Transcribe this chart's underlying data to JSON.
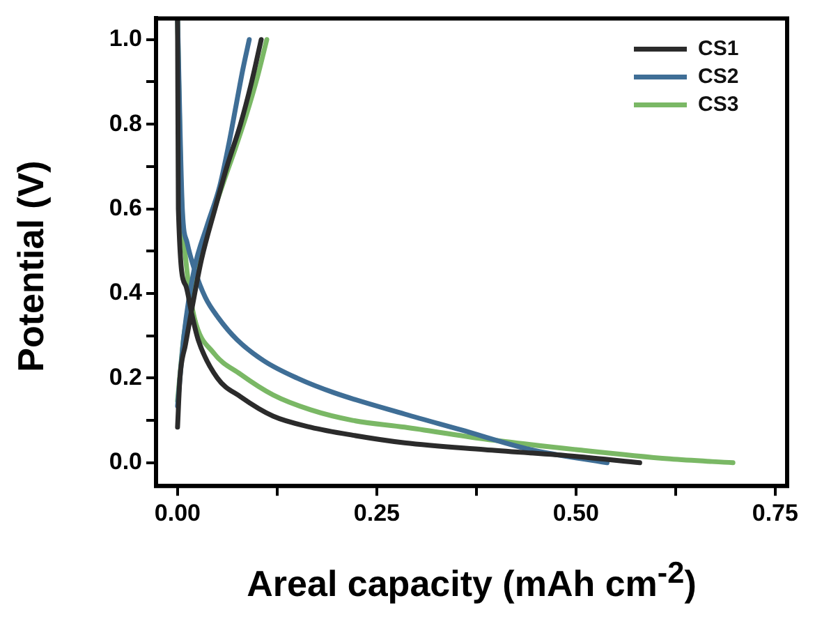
{
  "chart_data": {
    "type": "line",
    "xlabel": "Areal capacity (mAh cm$^{-2}$)",
    "ylabel": "Potential (V)",
    "xlim": [
      -0.027,
      0.765
    ],
    "ylim": [
      -0.055,
      1.05
    ],
    "xticks": [
      {
        "value": 0,
        "label": "0.00"
      },
      {
        "value": 0.125,
        "label": null
      },
      0.25,
      {
        "value": 0.375,
        "label": null
      },
      {
        "value": 0.5,
        "label": "0.50"
      },
      {
        "value": 0.625,
        "label": null
      },
      0.75
    ],
    "yticks": [
      {
        "value": 0,
        "label": "0.0"
      },
      {
        "value": 0.1,
        "label": null
      },
      0.2,
      {
        "value": 0.3,
        "label": null
      },
      0.4,
      {
        "value": 0.5,
        "label": null
      },
      0.6,
      {
        "value": 0.7,
        "label": null
      },
      0.8,
      {
        "value": 0.9,
        "label": null
      },
      {
        "value": 1,
        "label": "1.0"
      }
    ],
    "grid": false,
    "legend": "top right",
    "marker": "none",
    "line_style": "solid",
    "series": [
      {
        "name": "CS1",
        "color": "#2b2b2b",
        "x": [
          0,
          0.001,
          0.01,
          0.018,
          0.026,
          0.05,
          0.079,
          0.12,
          0.167,
          0.22,
          0.285,
          0.385,
          0.5,
          0.58,
          null,
          0,
          0.003,
          0.01,
          0.018,
          0.03,
          0.047,
          0.062,
          0.079,
          0.093,
          0.105
        ],
        "values": [
          1.05,
          0.6,
          0.42,
          0.35,
          0.29,
          0.2,
          0.156,
          0.11,
          0.084,
          0.065,
          0.047,
          0.031,
          0.015,
          0,
          null,
          0.084,
          0.2,
          0.28,
          0.364,
          0.48,
          0.6,
          0.7,
          0.8,
          0.9,
          1
        ]
      },
      {
        "name": "CS2",
        "color": "#3f6e96",
        "x": [
          0,
          0.006,
          0.012,
          0.021,
          0.035,
          0.051,
          0.075,
          0.109,
          0.15,
          0.197,
          0.285,
          0.355,
          0.443,
          0.539,
          null,
          0,
          0.008,
          0.021,
          0.037,
          0.053,
          0.064,
          0.074,
          0.082,
          0.09
        ],
        "values": [
          1.05,
          0.6,
          0.52,
          0.458,
          0.39,
          0.343,
          0.29,
          0.24,
          0.2,
          0.165,
          0.115,
          0.078,
          0.031,
          0,
          null,
          0.134,
          0.3,
          0.458,
          0.56,
          0.654,
          0.75,
          0.85,
          0.93,
          1
        ]
      },
      {
        "name": "CS3",
        "color": "#7ab865",
        "x": [
          0,
          0.004,
          0.012,
          0.021,
          0.045,
          0.079,
          0.12,
          0.167,
          0.22,
          0.285,
          0.385,
          0.5,
          0.618,
          0.697,
          null,
          0,
          0.008,
          0.021,
          0.038,
          0.056,
          0.072,
          0.086,
          0.1,
          0.112
        ],
        "values": [
          1.05,
          0.676,
          0.45,
          0.343,
          0.26,
          0.209,
          0.16,
          0.125,
          0.1,
          0.084,
          0.056,
          0.031,
          0.009,
          0,
          null,
          0.146,
          0.3,
          0.43,
          0.55,
          0.654,
          0.74,
          0.82,
          0.91,
          1
        ]
      }
    ]
  }
}
